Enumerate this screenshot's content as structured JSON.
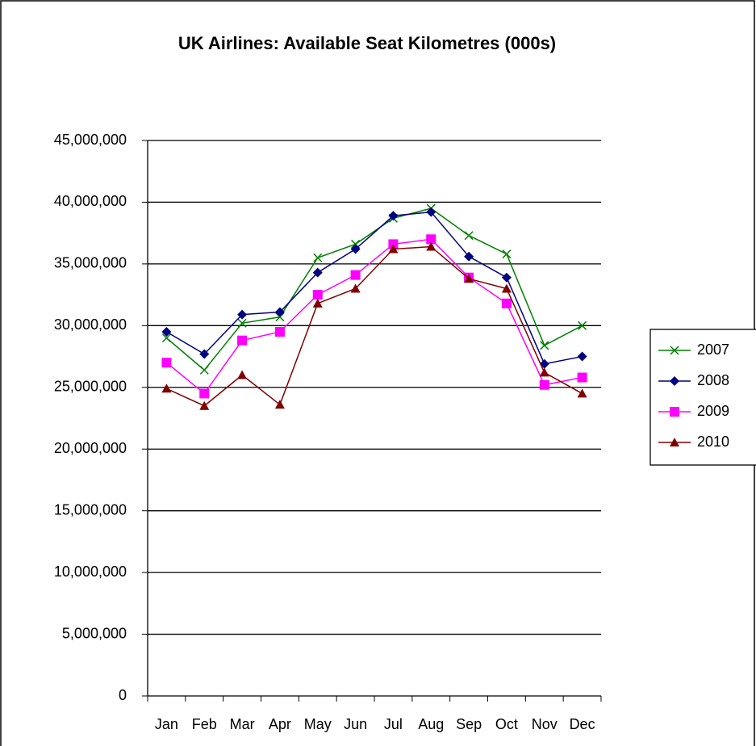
{
  "chart_data": {
    "type": "line",
    "title": "UK Airlines: Available Seat Kilometres (000s)",
    "categories": [
      "Jan",
      "Feb",
      "Mar",
      "Apr",
      "May",
      "Jun",
      "Jul",
      "Aug",
      "Sep",
      "Oct",
      "Nov",
      "Dec"
    ],
    "series": [
      {
        "name": "2007",
        "color": "#008000",
        "marker": "x",
        "values": [
          29000000,
          26400000,
          30200000,
          30700000,
          35500000,
          36600000,
          38700000,
          39500000,
          37300000,
          35800000,
          28400000,
          30000000
        ]
      },
      {
        "name": "2008",
        "color": "#000080",
        "marker": "diamond",
        "values": [
          29500000,
          27700000,
          30900000,
          31100000,
          34300000,
          36200000,
          38900000,
          39200000,
          35600000,
          33900000,
          26900000,
          27500000
        ]
      },
      {
        "name": "2009",
        "color": "#ff00ff",
        "marker": "square",
        "values": [
          27000000,
          24500000,
          28800000,
          29500000,
          32500000,
          34100000,
          36600000,
          37000000,
          33900000,
          31800000,
          25200000,
          25800000
        ]
      },
      {
        "name": "2010",
        "color": "#800000",
        "marker": "triangle",
        "values": [
          24900000,
          23500000,
          26000000,
          23600000,
          31800000,
          33000000,
          36200000,
          36400000,
          33800000,
          33000000,
          26200000,
          24500000
        ]
      }
    ],
    "ylim": [
      0,
      45000000
    ],
    "yticks": [
      0,
      {
        "value": 5000000,
        "label": "5,000,000"
      },
      {
        "value": 10000000,
        "label": "10,000,000"
      },
      {
        "value": 15000000,
        "label": "15,000,000"
      },
      {
        "value": 20000000,
        "label": "20,000,000"
      },
      {
        "value": 25000000,
        "label": "25,000,000"
      },
      {
        "value": 30000000,
        "label": "30,000,000"
      },
      {
        "value": 35000000,
        "label": "35,000,000"
      },
      {
        "value": 40000000,
        "label": "40,000,000"
      },
      {
        "value": 45000000,
        "label": "45,000,000"
      }
    ],
    "grid": true,
    "legend": "right"
  }
}
